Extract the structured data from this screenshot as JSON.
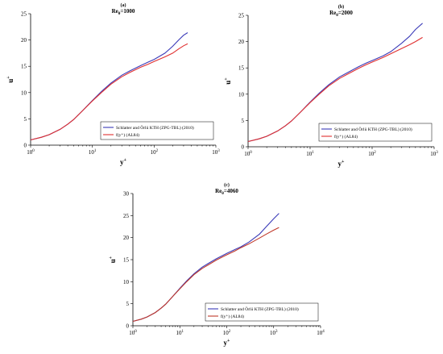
{
  "chart_data": [
    {
      "type": "line",
      "panel_label": "(a)",
      "title": "Re_θ=1000",
      "title_main": "Re",
      "title_sub": "θ",
      "title_rest": "=1000",
      "xlabel": "y",
      "xlabel_sup": "+",
      "ylabel": "u",
      "ylabel_sup": "+",
      "xscale": "log",
      "xlim": [
        1,
        1000
      ],
      "ylim": [
        0,
        25
      ],
      "xticks": [
        1,
        10,
        100,
        1000
      ],
      "xtick_labels": [
        {
          "base": "10",
          "exp": "0"
        },
        {
          "base": "10",
          "exp": "1"
        },
        {
          "base": "10",
          "exp": "2"
        },
        {
          "base": "10",
          "exp": "3"
        }
      ],
      "yticks": [
        0,
        5,
        10,
        15,
        20,
        25
      ],
      "ytick_labels": [
        "0",
        "5",
        "10",
        "15",
        "20",
        "25"
      ],
      "grid": false,
      "legend_position": "lower-right",
      "series": [
        {
          "name": "Schlatter and Örlü KTH (ZPG-TBL) (2010)",
          "color": "#3b3bb8",
          "x": [
            1,
            1.5,
            2,
            3,
            4,
            5,
            7,
            10,
            14,
            20,
            30,
            40,
            60,
            80,
            100,
            150,
            200,
            250,
            300,
            350
          ],
          "y": [
            1,
            1.5,
            2,
            3,
            4,
            4.9,
            6.6,
            8.5,
            10.2,
            11.8,
            13.3,
            14.1,
            15.1,
            15.8,
            16.3,
            17.5,
            18.8,
            20.0,
            20.9,
            21.4
          ]
        },
        {
          "name": "f(y⁺) (AL84)",
          "color": "#e03030",
          "x": [
            1,
            1.5,
            2,
            3,
            4,
            5,
            7,
            10,
            14,
            20,
            30,
            40,
            60,
            80,
            100,
            150,
            200,
            250,
            300,
            350
          ],
          "y": [
            1,
            1.5,
            2,
            3,
            4,
            4.9,
            6.6,
            8.4,
            10.0,
            11.6,
            13.0,
            13.8,
            14.8,
            15.4,
            15.9,
            16.8,
            17.5,
            18.3,
            18.9,
            19.3
          ]
        }
      ]
    },
    {
      "type": "line",
      "panel_label": "(b)",
      "title": "Re_θ=2000",
      "title_main": "Re",
      "title_sub": "θ",
      "title_rest": "=2000",
      "xlabel": "y",
      "xlabel_sup": "+",
      "ylabel": "u",
      "ylabel_sup": "+",
      "xscale": "log",
      "xlim": [
        1,
        1000
      ],
      "ylim": [
        0,
        25
      ],
      "xticks": [
        1,
        10,
        100,
        1000
      ],
      "xtick_labels": [
        {
          "base": "10",
          "exp": "0"
        },
        {
          "base": "10",
          "exp": "1"
        },
        {
          "base": "10",
          "exp": "2"
        },
        {
          "base": "10",
          "exp": "3"
        }
      ],
      "yticks": [
        0,
        5,
        10,
        15,
        20,
        25
      ],
      "ytick_labels": [
        "0",
        "5",
        "10",
        "15",
        "20",
        "25"
      ],
      "grid": false,
      "legend_position": "lower-right",
      "series": [
        {
          "name": "Schlatter and Örlü KTH (ZPG-TBL) (2010)",
          "color": "#3b3bb8",
          "x": [
            1,
            1.5,
            2,
            3,
            4,
            5,
            7,
            10,
            14,
            20,
            30,
            40,
            60,
            80,
            100,
            150,
            200,
            300,
            400,
            500,
            650
          ],
          "y": [
            1,
            1.5,
            2,
            3,
            4,
            4.9,
            6.6,
            8.5,
            10.2,
            11.8,
            13.3,
            14.1,
            15.2,
            15.9,
            16.4,
            17.3,
            18.1,
            19.7,
            21.0,
            22.3,
            23.5
          ]
        },
        {
          "name": "f(y⁺) (AL84)",
          "color": "#e03030",
          "x": [
            1,
            1.5,
            2,
            3,
            4,
            5,
            7,
            10,
            14,
            20,
            30,
            40,
            60,
            80,
            100,
            150,
            200,
            300,
            400,
            500,
            650
          ],
          "y": [
            1,
            1.5,
            2,
            3,
            4,
            4.9,
            6.6,
            8.4,
            10.0,
            11.6,
            13.0,
            13.8,
            14.9,
            15.6,
            16.1,
            17.0,
            17.7,
            18.7,
            19.4,
            20.0,
            20.8
          ]
        }
      ]
    },
    {
      "type": "line",
      "panel_label": "(c)",
      "title": "Re_θ=4060",
      "title_main": "Re",
      "title_sub": "θ",
      "title_rest": "=4060",
      "xlabel": "y",
      "xlabel_sup": "+",
      "ylabel": "u",
      "ylabel_sup": "+",
      "xscale": "log",
      "xlim": [
        1,
        10000
      ],
      "ylim": [
        0,
        30
      ],
      "xticks": [
        1,
        10,
        100,
        1000,
        10000
      ],
      "xtick_labels": [
        {
          "base": "10",
          "exp": "0"
        },
        {
          "base": "10",
          "exp": "1"
        },
        {
          "base": "10",
          "exp": "2"
        },
        {
          "base": "10",
          "exp": "3"
        },
        {
          "base": "10",
          "exp": "4"
        }
      ],
      "yticks": [
        0,
        5,
        10,
        15,
        20,
        25,
        30
      ],
      "ytick_labels": [
        "0",
        "5",
        "10",
        "15",
        "20",
        "25",
        "30"
      ],
      "grid": false,
      "legend_position": "lower-right",
      "series": [
        {
          "name": "Schlatter and Örlü KTH (ZPG-TBL) (2010)",
          "color": "#3b3bb8",
          "x": [
            1,
            1.5,
            2,
            3,
            4,
            5,
            7,
            10,
            14,
            20,
            30,
            40,
            60,
            80,
            100,
            150,
            200,
            300,
            500,
            700,
            1000,
            1300
          ],
          "y": [
            1,
            1.5,
            2,
            3,
            4,
            4.9,
            6.6,
            8.5,
            10.2,
            11.8,
            13.3,
            14.1,
            15.2,
            15.9,
            16.4,
            17.3,
            17.9,
            19.0,
            20.8,
            22.5,
            24.3,
            25.5
          ]
        },
        {
          "name": "f(y⁺) (AL84)",
          "color": "#c0392b",
          "x": [
            1,
            1.5,
            2,
            3,
            4,
            5,
            7,
            10,
            14,
            20,
            30,
            40,
            60,
            80,
            100,
            150,
            200,
            300,
            500,
            700,
            1000,
            1300
          ],
          "y": [
            1,
            1.5,
            2,
            3,
            4,
            4.9,
            6.6,
            8.4,
            10.0,
            11.6,
            13.0,
            13.8,
            14.9,
            15.6,
            16.1,
            17.0,
            17.7,
            18.6,
            19.9,
            20.8,
            21.7,
            22.3
          ]
        }
      ]
    }
  ]
}
